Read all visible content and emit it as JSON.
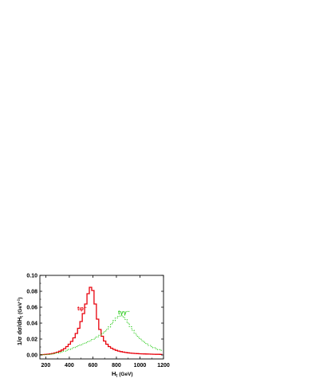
{
  "chart_data": {
    "type": "line",
    "xlabel": "H",
    "xlabel_sub": "t",
    "xlabel_unit": "(GeV)",
    "ylabel": "1/σ dσ/dH",
    "ylabel_sub": "t",
    "ylabel_unit": "(GeV",
    "ylabel_sup": "-1",
    "ylabel_close": ")",
    "xlim": [
      150,
      1200
    ],
    "ylim": [
      -0.005,
      0.1
    ],
    "x_ticks": [
      200,
      400,
      600,
      800,
      1000,
      1200
    ],
    "y_ticks": [
      0.0,
      0.02,
      0.04,
      0.06,
      0.08,
      0.1
    ],
    "y_tick_labels": [
      "0.00",
      "0.02",
      "0.04",
      "0.06",
      "0.08",
      "0.10"
    ],
    "grid": false,
    "bin_width": 20,
    "series": [
      {
        "name": "tφ⁻",
        "color": "#e8000b",
        "style": "solid",
        "x": [
          160,
          180,
          200,
          220,
          240,
          260,
          280,
          300,
          320,
          340,
          360,
          380,
          400,
          420,
          440,
          460,
          480,
          500,
          520,
          540,
          560,
          580,
          600,
          620,
          640,
          660,
          680,
          700,
          720,
          740,
          760,
          780,
          800,
          820,
          840,
          860,
          880,
          900,
          920,
          940,
          960,
          980,
          1000,
          1020,
          1040,
          1060,
          1080,
          1100,
          1120,
          1140,
          1160,
          1180
        ],
        "values": [
          0.0003,
          0.0005,
          0.0007,
          0.001,
          0.0014,
          0.0019,
          0.0026,
          0.0035,
          0.0047,
          0.0062,
          0.008,
          0.0105,
          0.0135,
          0.017,
          0.0215,
          0.027,
          0.0335,
          0.042,
          0.052,
          0.064,
          0.077,
          0.085,
          0.081,
          0.064,
          0.045,
          0.032,
          0.0235,
          0.0175,
          0.0135,
          0.0105,
          0.0085,
          0.007,
          0.0058,
          0.0049,
          0.0042,
          0.0036,
          0.0031,
          0.0027,
          0.0024,
          0.0021,
          0.0019,
          0.0017,
          0.0015,
          0.0014,
          0.0013,
          0.0012,
          0.0011,
          0.001,
          0.0009,
          0.0008,
          0.0008,
          0.0007
        ]
      },
      {
        "name": "tγγ⁻",
        "color": "#2ecc1f",
        "style": "dotted",
        "x": [
          160,
          180,
          200,
          220,
          240,
          260,
          280,
          300,
          320,
          340,
          360,
          380,
          400,
          420,
          440,
          460,
          480,
          500,
          520,
          540,
          560,
          580,
          600,
          620,
          640,
          660,
          680,
          700,
          720,
          740,
          760,
          780,
          800,
          820,
          840,
          860,
          880,
          900,
          920,
          940,
          960,
          980,
          1000,
          1020,
          1040,
          1060,
          1080,
          1100,
          1120,
          1140,
          1160,
          1180
        ],
        "values": [
          0.0002,
          0.0003,
          0.0004,
          0.0006,
          0.0009,
          0.0013,
          0.0018,
          0.0024,
          0.0031,
          0.0039,
          0.0048,
          0.0058,
          0.0069,
          0.008,
          0.0092,
          0.0104,
          0.0116,
          0.0128,
          0.014,
          0.0153,
          0.0166,
          0.018,
          0.0195,
          0.0211,
          0.0228,
          0.0247,
          0.0268,
          0.0292,
          0.032,
          0.0352,
          0.0392,
          0.0432,
          0.0465,
          0.0485,
          0.049,
          0.0478,
          0.0445,
          0.04,
          0.0355,
          0.031,
          0.027,
          0.0235,
          0.0205,
          0.018,
          0.0158,
          0.0138,
          0.012,
          0.0104,
          0.009,
          0.0078,
          0.0067,
          0.0058
        ]
      }
    ]
  }
}
